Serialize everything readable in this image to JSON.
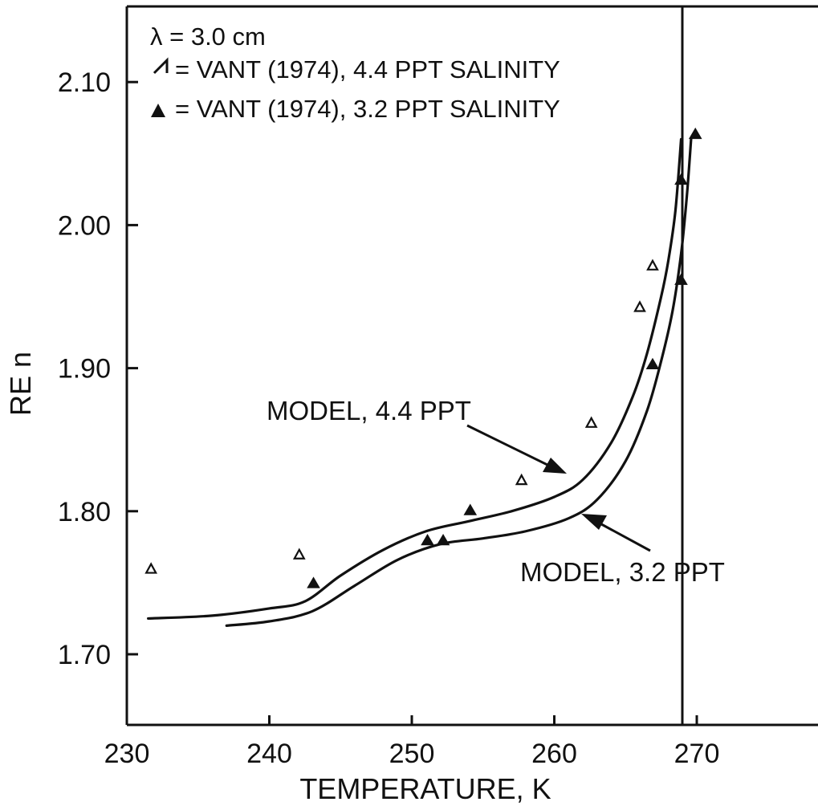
{
  "chart_data": {
    "type": "scatter",
    "xlabel": "TEMPERATURE, K",
    "ylabel": "RE n",
    "xlim": [
      230,
      280
    ],
    "ylim": [
      1.65,
      2.155
    ],
    "xticks": [
      230,
      240,
      250,
      260,
      270
    ],
    "yticks": [
      1.7,
      1.8,
      1.9,
      2.0,
      2.1
    ],
    "xtick_labels": [
      "230",
      "240",
      "250",
      "260",
      "270"
    ],
    "ytick_labels": [
      "1.70",
      "1.80",
      "1.90",
      "2.00",
      "2.10"
    ],
    "grid": false,
    "legend_position": "top-left",
    "legend": {
      "line1": "λ = 3.0 cm",
      "line2": "= VANT (1974), 4.4 PPT SALINITY",
      "line3": "= VANT (1974), 3.2 PPT SALINITY"
    },
    "series": [
      {
        "name": "VANT (1974), 4.4 PPT SALINITY",
        "marker": "open-triangle",
        "x": [
          231.7,
          242.1,
          257.7,
          262.6,
          266.0,
          266.9
        ],
        "y": [
          1.76,
          1.77,
          1.822,
          1.862,
          1.943,
          1.972
        ]
      },
      {
        "name": "VANT (1974), 3.2 PPT SALINITY",
        "marker": "filled-triangle",
        "x": [
          243.1,
          251.1,
          252.2,
          254.1,
          266.9,
          268.9,
          268.9,
          269.9
        ],
        "y": [
          1.75,
          1.78,
          1.78,
          1.801,
          1.903,
          1.962,
          2.032,
          2.064
        ]
      },
      {
        "name": "MODEL, 4.4 PPT",
        "type": "line",
        "x": [
          231.5,
          236.0,
          240.0,
          242.5,
          245.0,
          248.0,
          251.0,
          254.0,
          257.0,
          260.0,
          262.0,
          264.0,
          265.5,
          266.5,
          267.5,
          268.0,
          268.5,
          268.9
        ],
        "y": [
          1.725,
          1.727,
          1.732,
          1.737,
          1.755,
          1.773,
          1.786,
          1.793,
          1.8,
          1.81,
          1.822,
          1.848,
          1.88,
          1.91,
          1.95,
          1.975,
          2.01,
          2.06
        ]
      },
      {
        "name": "MODEL, 3.2 PPT",
        "type": "line",
        "x": [
          237.0,
          240.0,
          243.0,
          246.0,
          249.0,
          252.0,
          255.0,
          258.0,
          261.0,
          263.0,
          265.0,
          266.5,
          267.5,
          268.3,
          268.9,
          269.3,
          269.6
        ],
        "y": [
          1.72,
          1.723,
          1.73,
          1.748,
          1.766,
          1.777,
          1.781,
          1.786,
          1.795,
          1.808,
          1.835,
          1.87,
          1.905,
          1.94,
          1.98,
          2.02,
          2.06
        ]
      }
    ],
    "annotations": [
      {
        "text": "MODEL, 4.4 PPT"
      },
      {
        "text": "MODEL, 3.2 PPT"
      }
    ]
  }
}
